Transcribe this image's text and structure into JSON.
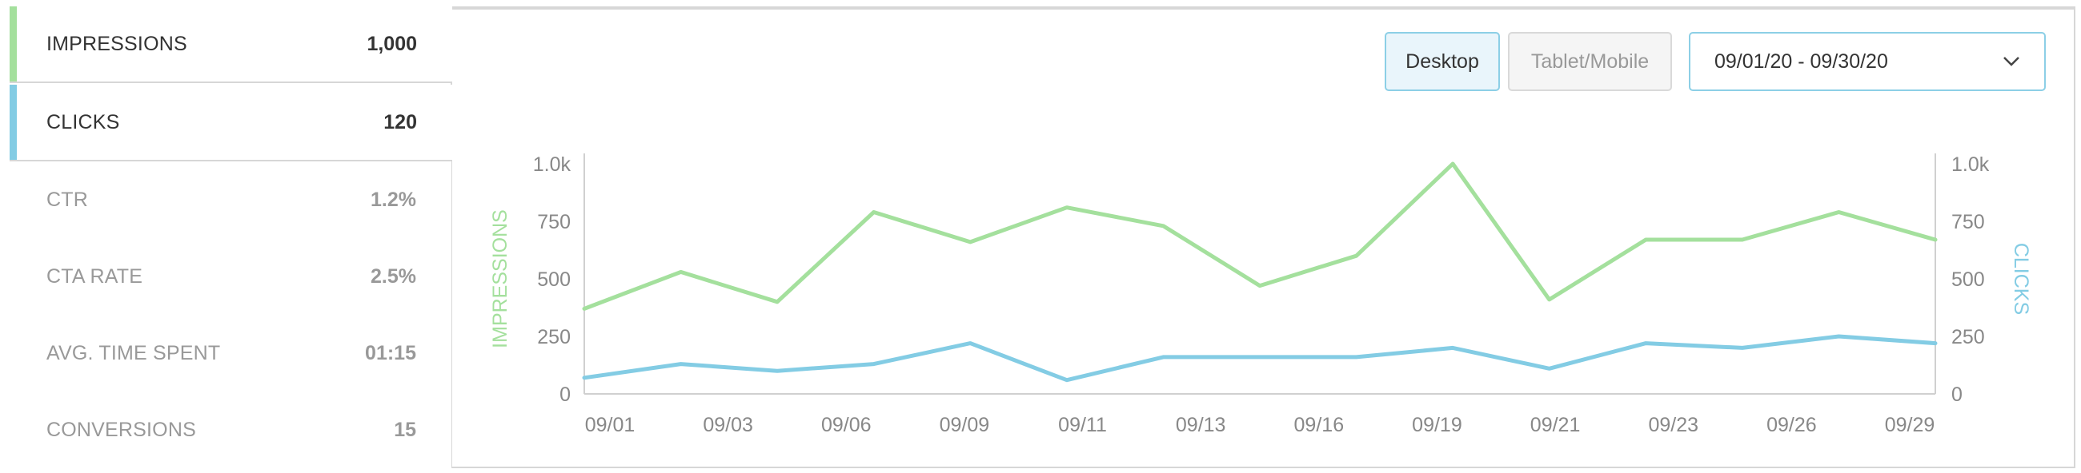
{
  "metrics": [
    {
      "label": "IMPRESSIONS",
      "value": "1,000",
      "color": "#a4e09d"
    },
    {
      "label": "CLICKS",
      "value": "120",
      "color": "#83cce4"
    },
    {
      "label": "CTR",
      "value": "1.2%"
    },
    {
      "label": "CTA RATE",
      "value": "2.5%"
    },
    {
      "label": "AVG. TIME SPENT",
      "value": "01:15"
    },
    {
      "label": "CONVERSIONS",
      "value": "15"
    }
  ],
  "controls": {
    "desktop_label": "Desktop",
    "tablet_label": "Tablet/Mobile",
    "date_range": "09/01/20 - 09/30/20",
    "date_icon": "chevron-down-icon"
  },
  "chart_data": {
    "type": "line",
    "x": [
      "09/01",
      "09/02",
      "09/04",
      "09/06",
      "09/08",
      "09/10",
      "09/12",
      "09/14",
      "09/16",
      "09/19",
      "09/21",
      "09/23",
      "09/25",
      "09/27",
      "09/29"
    ],
    "tick_labels": [
      "09/01",
      "09/03",
      "09/06",
      "09/09",
      "09/11",
      "09/13",
      "09/16",
      "09/19",
      "09/21",
      "09/23",
      "09/26",
      "09/29"
    ],
    "series": [
      {
        "name": "IMPRESSIONS",
        "axis": "left",
        "color": "#a4e09d",
        "values": [
          370,
          530,
          400,
          790,
          660,
          810,
          730,
          470,
          600,
          1000,
          410,
          670,
          670,
          790,
          670
        ]
      },
      {
        "name": "CLICKS",
        "axis": "right",
        "color": "#83cce4",
        "values": [
          70,
          130,
          100,
          130,
          220,
          60,
          160,
          160,
          160,
          200,
          110,
          220,
          200,
          250,
          220
        ]
      }
    ],
    "ylabel": "IMPRESSIONS",
    "y2label": "CLICKS",
    "ylim": [
      0,
      1000
    ],
    "y2lim": [
      0,
      1000
    ],
    "yticks": [
      "0",
      "250",
      "500",
      "750",
      "1.0k"
    ],
    "y2ticks": [
      "0",
      "250",
      "500",
      "750",
      "1.0k"
    ],
    "grid": false
  }
}
